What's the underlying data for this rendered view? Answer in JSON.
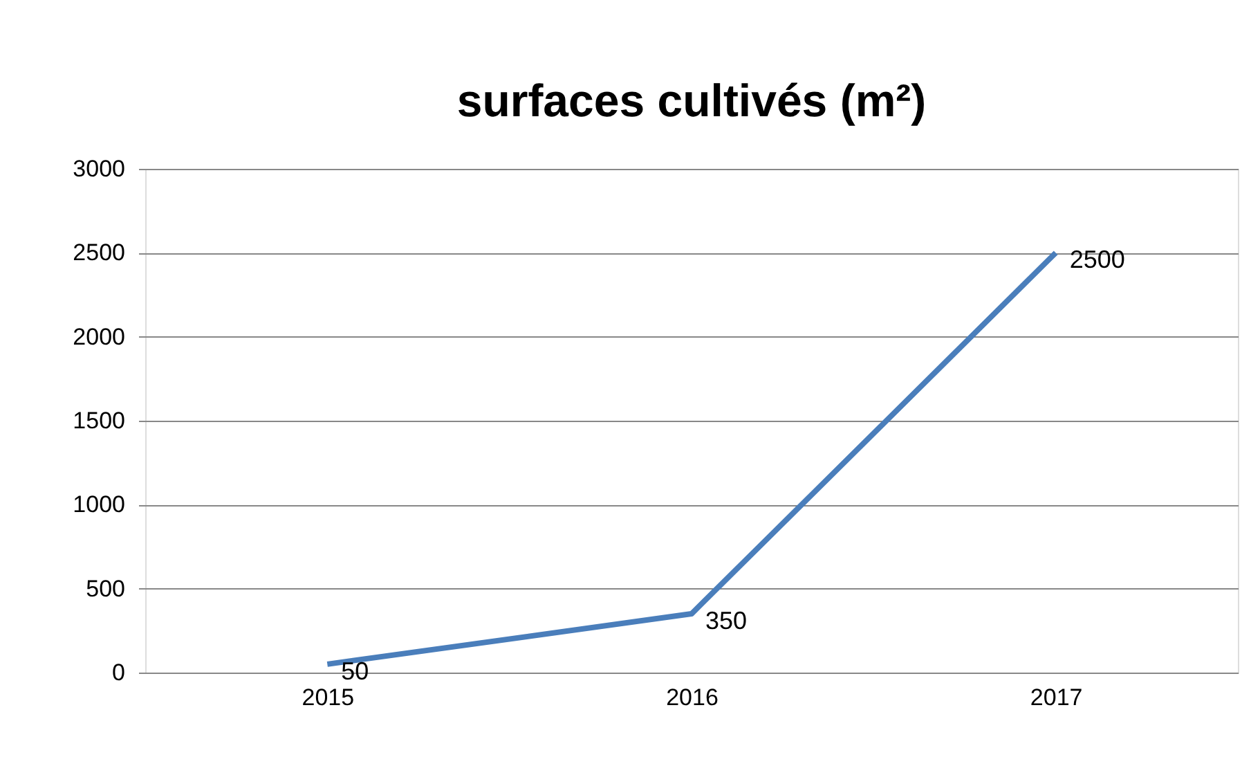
{
  "chart_data": {
    "type": "line",
    "title": "surfaces cultivés (m²)",
    "categories": [
      "2015",
      "2016",
      "2017"
    ],
    "series": [
      {
        "color": "#4a7ebb",
        "values": [
          50,
          350,
          2500
        ]
      }
    ],
    "ylim": [
      0,
      3000
    ],
    "yticks": [
      0,
      500,
      1000,
      1500,
      2000,
      2500,
      3000
    ],
    "grid": "y",
    "data_labels": true,
    "marker": "none",
    "line_style": "solid"
  }
}
